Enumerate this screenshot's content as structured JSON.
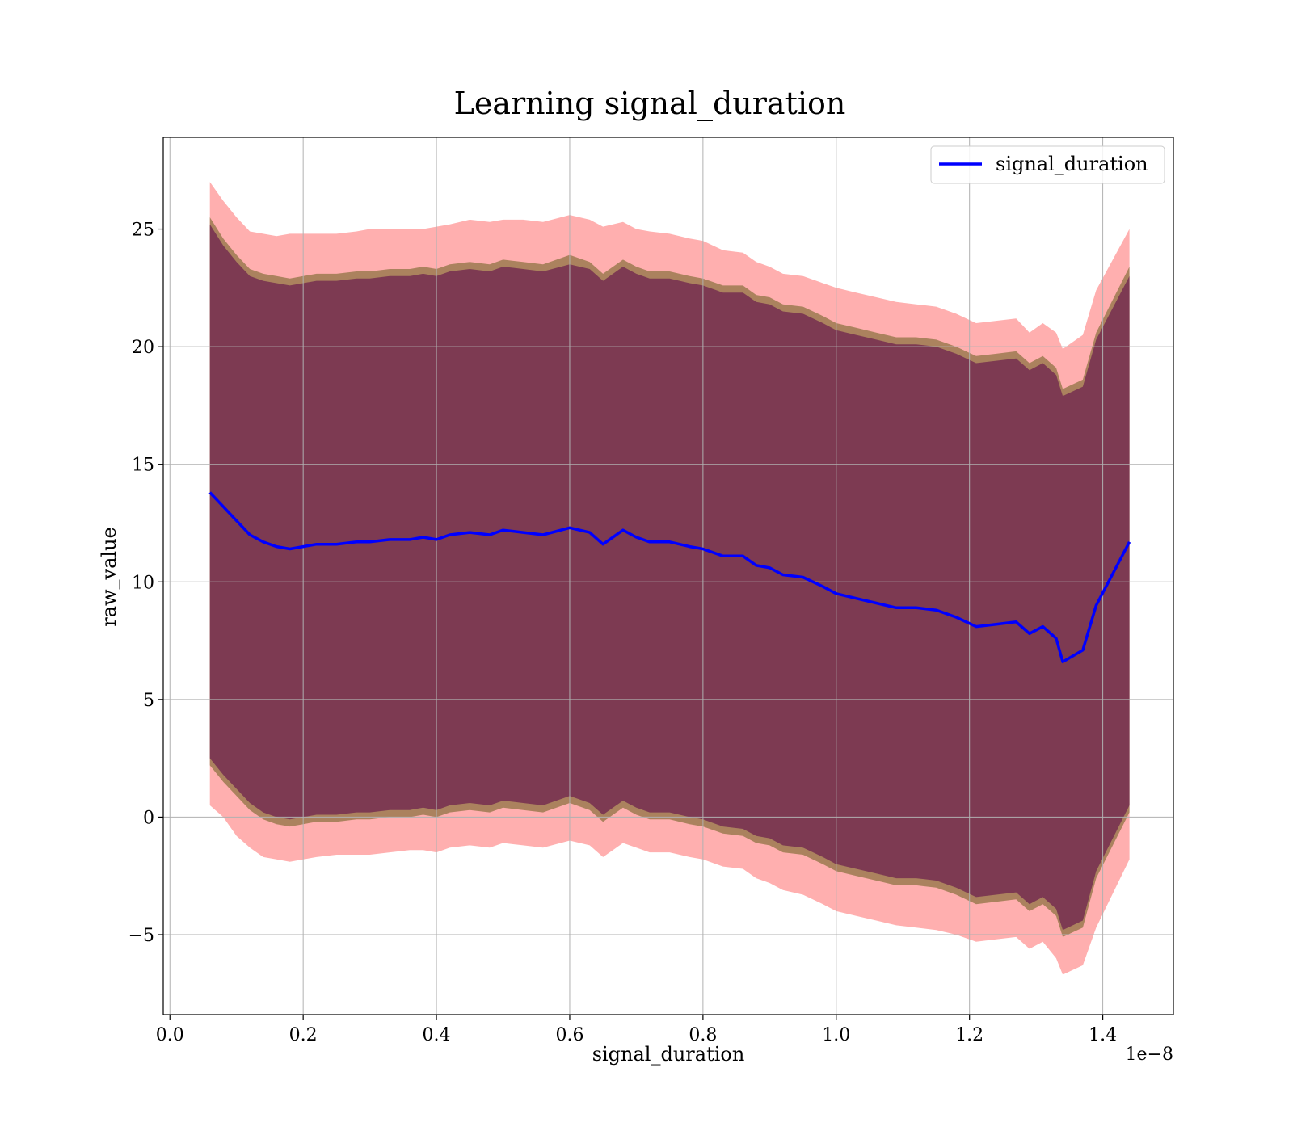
{
  "chart_data": {
    "type": "line",
    "title": "Learning signal_duration",
    "xlabel": "signal_duration",
    "ylabel": "raw_value",
    "x_offset_label": "1e−8",
    "xlim": [
      -0.01,
      1.506
    ],
    "ylim": [
      -8.4,
      28.9
    ],
    "xticks": [
      0.0,
      0.2,
      0.4,
      0.6,
      0.8,
      1.0,
      1.2,
      1.4
    ],
    "xtick_labels": [
      "0.0",
      "0.2",
      "0.4",
      "0.6",
      "0.8",
      "1.0",
      "1.2",
      "1.4"
    ],
    "yticks": [
      -5,
      0,
      5,
      10,
      15,
      20,
      25
    ],
    "ytick_labels": [
      "−5",
      "0",
      "5",
      "10",
      "15",
      "20",
      "25"
    ],
    "grid": true,
    "legend": {
      "position": "top-right",
      "entries": [
        "signal_duration"
      ]
    },
    "colors": {
      "line": "#0000ff",
      "band_outer": "#ff7a7a",
      "band_mid": "#9c7a50",
      "band_inner": "#7d3a52"
    },
    "x": [
      0.06,
      0.08,
      0.1,
      0.12,
      0.14,
      0.16,
      0.18,
      0.2,
      0.22,
      0.25,
      0.28,
      0.3,
      0.33,
      0.36,
      0.38,
      0.4,
      0.42,
      0.45,
      0.48,
      0.5,
      0.53,
      0.56,
      0.6,
      0.63,
      0.65,
      0.68,
      0.7,
      0.72,
      0.75,
      0.78,
      0.8,
      0.83,
      0.86,
      0.88,
      0.9,
      0.92,
      0.95,
      0.98,
      1.0,
      1.03,
      1.06,
      1.09,
      1.12,
      1.15,
      1.18,
      1.21,
      1.24,
      1.27,
      1.29,
      1.31,
      1.33,
      1.34,
      1.37,
      1.39,
      1.44
    ],
    "series": [
      {
        "name": "signal_duration",
        "values": [
          13.8,
          13.2,
          12.6,
          12.0,
          11.7,
          11.5,
          11.4,
          11.5,
          11.6,
          11.6,
          11.7,
          11.7,
          11.8,
          11.8,
          11.9,
          11.8,
          12.0,
          12.1,
          12.0,
          12.2,
          12.1,
          12.0,
          12.3,
          12.1,
          11.6,
          12.2,
          11.9,
          11.7,
          11.7,
          11.5,
          11.4,
          11.1,
          11.1,
          10.7,
          10.6,
          10.3,
          10.2,
          9.8,
          9.5,
          9.3,
          9.1,
          8.9,
          8.9,
          8.8,
          8.5,
          8.1,
          8.2,
          8.3,
          7.8,
          8.1,
          7.6,
          6.6,
          7.1,
          9.0,
          11.7
        ]
      }
    ],
    "bands": [
      {
        "upper": [
          27.0,
          26.2,
          25.5,
          24.9,
          24.8,
          24.7,
          24.8,
          24.8,
          24.8,
          24.8,
          24.9,
          25.0,
          25.0,
          25.0,
          25.0,
          25.1,
          25.2,
          25.4,
          25.3,
          25.4,
          25.4,
          25.3,
          25.6,
          25.4,
          25.1,
          25.3,
          25.0,
          24.9,
          24.8,
          24.6,
          24.5,
          24.1,
          24.0,
          23.6,
          23.4,
          23.1,
          23.0,
          22.7,
          22.5,
          22.3,
          22.1,
          21.9,
          21.8,
          21.7,
          21.4,
          21.0,
          21.1,
          21.2,
          20.6,
          21.0,
          20.6,
          19.9,
          20.5,
          22.4,
          25.0
        ],
        "lower": [
          0.5,
          0.0,
          -0.8,
          -1.3,
          -1.7,
          -1.8,
          -1.9,
          -1.8,
          -1.7,
          -1.6,
          -1.6,
          -1.6,
          -1.5,
          -1.4,
          -1.4,
          -1.5,
          -1.3,
          -1.2,
          -1.3,
          -1.1,
          -1.2,
          -1.3,
          -1.0,
          -1.2,
          -1.7,
          -1.1,
          -1.3,
          -1.5,
          -1.5,
          -1.7,
          -1.8,
          -2.1,
          -2.2,
          -2.6,
          -2.8,
          -3.1,
          -3.3,
          -3.7,
          -4.0,
          -4.2,
          -4.4,
          -4.6,
          -4.7,
          -4.8,
          -5.0,
          -5.3,
          -5.2,
          -5.1,
          -5.6,
          -5.3,
          -6.0,
          -6.7,
          -6.3,
          -4.7,
          -1.8
        ]
      },
      {
        "upper": [
          25.5,
          24.6,
          23.9,
          23.3,
          23.1,
          23.0,
          22.9,
          23.0,
          23.1,
          23.1,
          23.2,
          23.2,
          23.3,
          23.3,
          23.4,
          23.3,
          23.5,
          23.6,
          23.5,
          23.7,
          23.6,
          23.5,
          23.9,
          23.6,
          23.1,
          23.7,
          23.4,
          23.2,
          23.2,
          23.0,
          22.9,
          22.6,
          22.6,
          22.2,
          22.1,
          21.8,
          21.7,
          21.3,
          21.0,
          20.8,
          20.6,
          20.4,
          20.4,
          20.3,
          20.0,
          19.6,
          19.7,
          19.8,
          19.3,
          19.6,
          19.1,
          18.2,
          18.6,
          20.6,
          23.4
        ],
        "lower": [
          2.2,
          1.5,
          0.9,
          0.3,
          -0.1,
          -0.3,
          -0.4,
          -0.3,
          -0.2,
          -0.2,
          -0.1,
          -0.1,
          0.0,
          0.0,
          0.1,
          0.0,
          0.2,
          0.3,
          0.2,
          0.4,
          0.3,
          0.2,
          0.6,
          0.3,
          -0.2,
          0.4,
          0.1,
          -0.1,
          -0.1,
          -0.3,
          -0.4,
          -0.7,
          -0.8,
          -1.1,
          -1.2,
          -1.5,
          -1.6,
          -2.0,
          -2.3,
          -2.5,
          -2.7,
          -2.9,
          -2.9,
          -3.0,
          -3.3,
          -3.7,
          -3.6,
          -3.5,
          -4.0,
          -3.7,
          -4.2,
          -5.1,
          -4.7,
          -2.6,
          0.2
        ]
      },
      {
        "upper": [
          25.2,
          24.3,
          23.6,
          23.0,
          22.8,
          22.7,
          22.6,
          22.7,
          22.8,
          22.8,
          22.9,
          22.9,
          23.0,
          23.0,
          23.1,
          23.0,
          23.2,
          23.3,
          23.2,
          23.4,
          23.3,
          23.2,
          23.5,
          23.3,
          22.8,
          23.4,
          23.1,
          22.9,
          22.9,
          22.7,
          22.6,
          22.3,
          22.3,
          21.9,
          21.8,
          21.5,
          21.4,
          21.0,
          20.7,
          20.5,
          20.3,
          20.1,
          20.1,
          20.0,
          19.7,
          19.3,
          19.4,
          19.5,
          19.0,
          19.3,
          18.8,
          17.9,
          18.3,
          20.3,
          23.0
        ],
        "lower": [
          2.5,
          1.8,
          1.2,
          0.6,
          0.2,
          0.0,
          -0.1,
          0.0,
          0.1,
          0.1,
          0.2,
          0.2,
          0.3,
          0.3,
          0.4,
          0.3,
          0.5,
          0.6,
          0.5,
          0.7,
          0.6,
          0.5,
          0.9,
          0.6,
          0.1,
          0.7,
          0.4,
          0.2,
          0.2,
          0.0,
          -0.1,
          -0.4,
          -0.5,
          -0.8,
          -0.9,
          -1.2,
          -1.3,
          -1.7,
          -2.0,
          -2.2,
          -2.4,
          -2.6,
          -2.6,
          -2.7,
          -3.0,
          -3.4,
          -3.3,
          -3.2,
          -3.7,
          -3.4,
          -3.9,
          -4.8,
          -4.4,
          -2.3,
          0.5
        ]
      }
    ]
  }
}
